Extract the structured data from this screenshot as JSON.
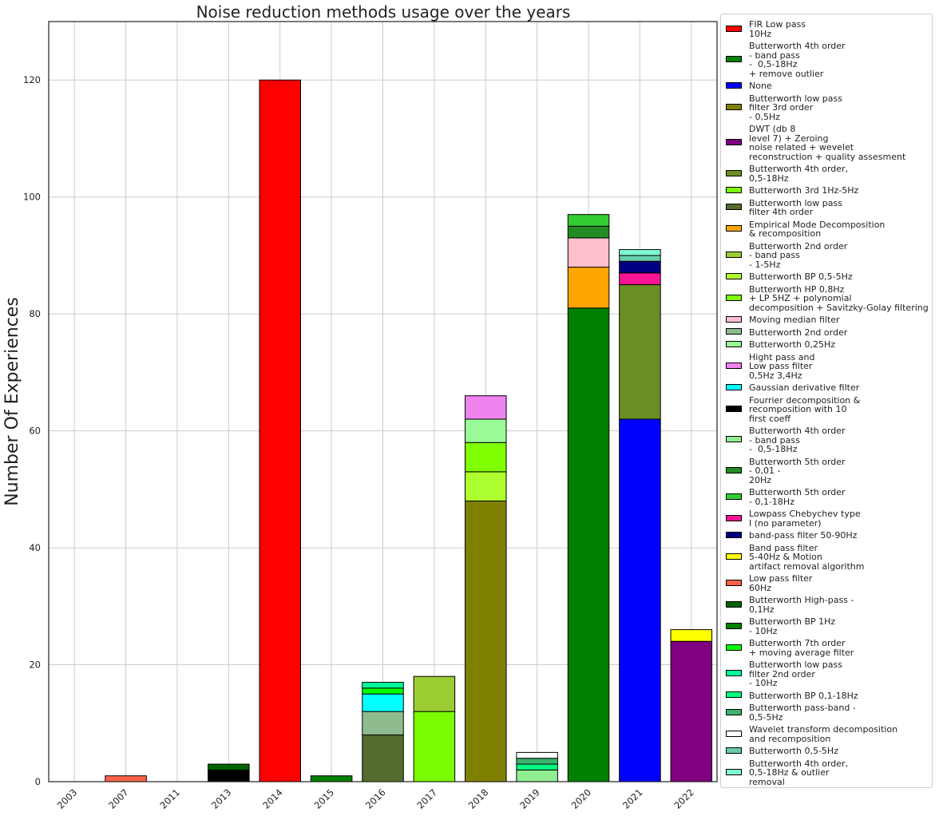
{
  "chart_data": {
    "type": "bar",
    "stacked": true,
    "title": "Noise reduction methods usage over the years",
    "xlabel": "",
    "ylabel": "Number Of Experiences",
    "ylim": [
      0,
      130
    ],
    "yticks": [
      0,
      20,
      40,
      60,
      80,
      100,
      120
    ],
    "grid": true,
    "legend_position": "right",
    "categories": [
      "2003",
      "2007",
      "2011",
      "2013",
      "2014",
      "2015",
      "2016",
      "2017",
      "2018",
      "2019",
      "2020",
      "2021",
      "2022"
    ],
    "series": [
      {
        "name": "FIR Low pass\n10Hz",
        "color": "#ff0000",
        "values": [
          0,
          0,
          0,
          0,
          120,
          0,
          0,
          0,
          0,
          0,
          0,
          0,
          0
        ]
      },
      {
        "name": "Butterworth 4th order\n- band pass\n-  0,5-18Hz\n+ remove outlier",
        "color": "#008000",
        "values": [
          0,
          0,
          0,
          0,
          0,
          0,
          0,
          0,
          0,
          0,
          81,
          0,
          0
        ]
      },
      {
        "name": "None",
        "color": "#0000ff",
        "values": [
          0,
          0,
          0,
          0,
          0,
          0,
          0,
          0,
          0,
          0,
          0,
          62,
          0
        ]
      },
      {
        "name": "Butterworth low pass\nfilter 3rd order\n- 0,5Hz",
        "color": "#808000",
        "values": [
          0,
          0,
          0,
          0,
          0,
          0,
          0,
          0,
          48,
          0,
          0,
          0,
          0
        ]
      },
      {
        "name": "DWT (db 8\nlevel 7) + Zeroing\nnoise related + wevelet\nreconstruction + quality assesment",
        "color": "#800080",
        "values": [
          0,
          0,
          0,
          0,
          0,
          0,
          0,
          0,
          0,
          0,
          0,
          0,
          24
        ]
      },
      {
        "name": "Butterworth 4th order,\n0,5-18Hz",
        "color": "#6b8e23",
        "values": [
          0,
          0,
          0,
          0,
          0,
          0,
          0,
          0,
          0,
          0,
          0,
          23,
          0
        ]
      },
      {
        "name": "Butterworth 3rd 1Hz-5Hz",
        "color": "#7cfc00",
        "values": [
          0,
          0,
          0,
          0,
          0,
          0,
          0,
          12,
          0,
          0,
          0,
          0,
          0
        ]
      },
      {
        "name": "Butterworth low pass\nfilter 4th order",
        "color": "#556b2f",
        "values": [
          0,
          0,
          0,
          0,
          0,
          0,
          8,
          0,
          0,
          0,
          0,
          0,
          0
        ]
      },
      {
        "name": "Empirical Mode Decomposition\n& recomposition",
        "color": "#ffa500",
        "values": [
          0,
          0,
          0,
          0,
          0,
          0,
          0,
          0,
          0,
          0,
          7,
          0,
          0
        ]
      },
      {
        "name": "Butterworth 2nd order\n- band pass\n- 1-5Hz",
        "color": "#9acd32",
        "values": [
          0,
          0,
          0,
          0,
          0,
          0,
          0,
          6,
          0,
          0,
          0,
          0,
          0
        ]
      },
      {
        "name": "Butterworth BP 0,5-5Hz",
        "color": "#adff2f",
        "values": [
          0,
          0,
          0,
          0,
          0,
          0,
          0,
          0,
          5,
          0,
          0,
          0,
          0
        ]
      },
      {
        "name": "Butterworth HP 0,8Hz\n+ LP 5HZ + polynomial\ndecomposition + Savitzky-Golay filtering",
        "color": "#7fff00",
        "values": [
          0,
          0,
          0,
          0,
          0,
          0,
          0,
          0,
          5,
          0,
          0,
          0,
          0
        ]
      },
      {
        "name": "Moving median filter",
        "color": "#ffc0cb",
        "values": [
          0,
          0,
          0,
          0,
          0,
          0,
          0,
          0,
          0,
          0,
          5,
          0,
          0
        ]
      },
      {
        "name": "Butterworth 2nd order",
        "color": "#8fbc8f",
        "values": [
          0,
          0,
          0,
          0,
          0,
          0,
          4,
          0,
          0,
          0,
          0,
          0,
          0
        ]
      },
      {
        "name": "Butterworth 0,25Hz",
        "color": "#98fb98",
        "values": [
          0,
          0,
          0,
          0,
          0,
          0,
          0,
          0,
          4,
          0,
          0,
          0,
          0
        ]
      },
      {
        "name": "Hight pass and\nLow pass filter\n0,5Hz 3,4Hz",
        "color": "#ee82ee",
        "values": [
          0,
          0,
          0,
          0,
          0,
          0,
          0,
          0,
          4,
          0,
          0,
          0,
          0
        ]
      },
      {
        "name": "Gaussian derivative filter",
        "color": "#00ffff",
        "values": [
          0,
          0,
          0,
          0,
          0,
          0,
          3,
          0,
          0,
          0,
          0,
          0,
          0
        ]
      },
      {
        "name": "Fourrier decomposition &\nrecomposition with 10\nfirst coeff",
        "color": "#000000",
        "values": [
          0,
          0,
          0,
          2,
          0,
          0,
          0,
          0,
          0,
          0,
          0,
          0,
          0
        ]
      },
      {
        "name": "Butterworth 4th order\n- band pass\n-  0,5-18Hz",
        "color": "#90ee90",
        "values": [
          0,
          0,
          0,
          0,
          0,
          0,
          0,
          0,
          0,
          2,
          0,
          0,
          0
        ]
      },
      {
        "name": "Butterworth 5th order\n- 0,01 -\n20Hz",
        "color": "#228b22",
        "values": [
          0,
          0,
          0,
          0,
          0,
          0,
          0,
          0,
          0,
          0,
          2,
          0,
          0
        ]
      },
      {
        "name": "Butterworth 5th order\n- 0,1-18Hz",
        "color": "#32cd32",
        "values": [
          0,
          0,
          0,
          0,
          0,
          0,
          0,
          0,
          0,
          0,
          2,
          0,
          0
        ]
      },
      {
        "name": "Lowpass Chebychev type\nI (no parameter)",
        "color": "#ff1493",
        "values": [
          0,
          0,
          0,
          0,
          0,
          0,
          0,
          0,
          0,
          0,
          0,
          2,
          0
        ]
      },
      {
        "name": "band-pass filter 50-90Hz",
        "color": "#000080",
        "values": [
          0,
          0,
          0,
          0,
          0,
          0,
          0,
          0,
          0,
          0,
          0,
          2,
          0
        ]
      },
      {
        "name": "Band pass filter\n5-40Hz & Motion\nartifact removal algorithm",
        "color": "#ffff00",
        "values": [
          0,
          0,
          0,
          0,
          0,
          0,
          0,
          0,
          0,
          0,
          0,
          0,
          2
        ]
      },
      {
        "name": "Low pass filter\n60Hz",
        "color": "#ff6347",
        "values": [
          0,
          1,
          0,
          0,
          0,
          0,
          0,
          0,
          0,
          0,
          0,
          0,
          0
        ]
      },
      {
        "name": "Butterworth High-pass -\n0,1Hz",
        "color": "#006400",
        "values": [
          0,
          0,
          0,
          1,
          0,
          0,
          0,
          0,
          0,
          0,
          0,
          0,
          0
        ]
      },
      {
        "name": "Butterworth BP 1Hz\n- 10Hz",
        "color": "#008000",
        "values": [
          0,
          0,
          0,
          0,
          0,
          1,
          0,
          0,
          0,
          0,
          0,
          0,
          0
        ]
      },
      {
        "name": "Butterworth 7th order\n+ moving average filter",
        "color": "#00ff00",
        "values": [
          0,
          0,
          0,
          0,
          0,
          0,
          1,
          0,
          0,
          0,
          0,
          0,
          0
        ]
      },
      {
        "name": "Butterworth low pass\nfilter 2nd order\n- 10Hz",
        "color": "#00fa9a",
        "values": [
          0,
          0,
          0,
          0,
          0,
          0,
          1,
          0,
          0,
          0,
          0,
          0,
          0
        ]
      },
      {
        "name": "Butterworth BP 0,1-18Hz",
        "color": "#00ff7f",
        "values": [
          0,
          0,
          0,
          0,
          0,
          0,
          0,
          0,
          0,
          1,
          0,
          0,
          0
        ]
      },
      {
        "name": "Butterworth pass-band -\n0,5-5Hz",
        "color": "#3cb371",
        "values": [
          0,
          0,
          0,
          0,
          0,
          0,
          0,
          0,
          0,
          1,
          0,
          0,
          0
        ]
      },
      {
        "name": "Wavelet transform decomposition\nand recomposition",
        "color": "#ffffff",
        "values": [
          0,
          0,
          0,
          0,
          0,
          0,
          0,
          0,
          0,
          1,
          0,
          0,
          0
        ]
      },
      {
        "name": "Butterworth 0,5-5Hz",
        "color": "#66cdaa",
        "values": [
          0,
          0,
          0,
          0,
          0,
          0,
          0,
          0,
          0,
          0,
          0,
          1,
          0
        ]
      },
      {
        "name": "Butterworth 4th order,\n0,5-18Hz & outlier\nremoval",
        "color": "#7fffd4",
        "values": [
          0,
          0,
          0,
          0,
          0,
          0,
          0,
          0,
          0,
          0,
          0,
          1,
          0
        ]
      }
    ]
  }
}
